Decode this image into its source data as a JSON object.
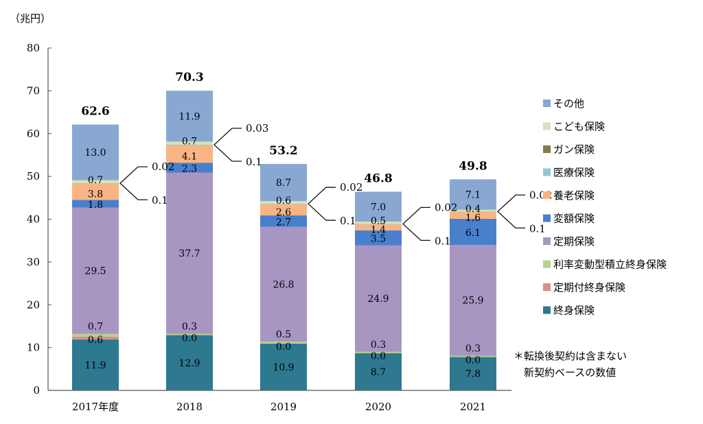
{
  "chart_data": {
    "type": "bar",
    "stacked": true,
    "unit_label": "（兆円）",
    "categories": [
      "2017年度",
      "2018",
      "2019",
      "2020",
      "2021"
    ],
    "ylim": [
      0,
      80
    ],
    "yticks": [
      0,
      10,
      20,
      30,
      40,
      50,
      60,
      70,
      80
    ],
    "grid": false,
    "legend_position": "right",
    "totals": [
      "62.6",
      "70.3",
      "53.2",
      "46.8",
      "49.8"
    ],
    "series": [
      {
        "name": "終身保険",
        "color": "#2e7890",
        "values": [
          11.9,
          12.9,
          10.9,
          8.7,
          7.8
        ],
        "labels": [
          "11.9",
          "12.9",
          "10.9",
          "8.7",
          "7.8"
        ]
      },
      {
        "name": "定期付終身保険",
        "color": "#d98c8c",
        "values": [
          0.6,
          0.0,
          0.0,
          0.0,
          0.0
        ],
        "labels": [
          "0.6",
          "0.0",
          "0.0",
          "0.0",
          "0.0"
        ]
      },
      {
        "name": "利率変動型積立終身保険",
        "color": "#b8cf8f",
        "values": [
          0.7,
          0.3,
          0.5,
          0.3,
          0.3
        ],
        "labels": [
          "0.7",
          "0.3",
          "0.5",
          "0.3",
          "0.3"
        ]
      },
      {
        "name": "定期保険",
        "color": "#a896c2",
        "values": [
          29.5,
          37.7,
          26.8,
          24.9,
          25.9
        ],
        "labels": [
          "29.5",
          "37.7",
          "26.8",
          "24.9",
          "25.9"
        ]
      },
      {
        "name": "変額保険",
        "color": "#4a7fcc",
        "values": [
          1.8,
          2.3,
          2.7,
          3.5,
          6.1
        ],
        "labels": [
          "1.8",
          "2.3",
          "2.7",
          "3.5",
          "6.1"
        ]
      },
      {
        "name": "養老保険",
        "color": "#f8b483",
        "values": [
          3.8,
          4.1,
          2.6,
          1.4,
          1.6
        ],
        "labels": [
          "3.8",
          "4.1",
          "2.6",
          "1.4",
          "1.6"
        ]
      },
      {
        "name": "医療保険",
        "color": "#8ec6d6",
        "values": [
          0.1,
          0.1,
          0.1,
          0.1,
          0.1
        ],
        "labels": [
          "0.1",
          "0.1",
          "0.1",
          "0.1",
          "0.1"
        ]
      },
      {
        "name": "ガン保険",
        "color": "#857a4a",
        "values": [
          0.02,
          0.03,
          0.02,
          0.02,
          0.02
        ],
        "labels": [
          "0.02",
          "0.03",
          "0.02",
          "0.02",
          "0.02"
        ]
      },
      {
        "name": "こども保険",
        "color": "#d4e4bf",
        "values": [
          0.7,
          0.7,
          0.6,
          0.5,
          0.4
        ],
        "labels": [
          "0.7",
          "0.7",
          "0.6",
          "0.5",
          "0.4"
        ]
      },
      {
        "name": "その他",
        "color": "#88a8d2",
        "values": [
          13.0,
          11.9,
          8.7,
          7.0,
          7.1
        ],
        "labels": [
          "13.0",
          "11.9",
          "8.7",
          "7.0",
          "7.1"
        ]
      }
    ],
    "legend_order": [
      "その他",
      "こども保険",
      "ガン保険",
      "医療保険",
      "養老保険",
      "変額保険",
      "定期保険",
      "利率変動型積立終身保険",
      "定期付終身保険",
      "終身保険"
    ],
    "callouts": [
      {
        "category": "2017年度",
        "upper": "0.02",
        "lower": "0.1"
      },
      {
        "category": "2018",
        "upper": "0.03",
        "lower": "0.1"
      },
      {
        "category": "2019",
        "upper": "0.02",
        "lower": "0.1"
      },
      {
        "category": "2020",
        "upper": "0.02",
        "lower": "0.1"
      },
      {
        "category": "2021",
        "upper": "0.02",
        "lower": "0.1"
      }
    ],
    "note": [
      "＊転換後契約は含まない",
      "　新契約ベースの数値"
    ]
  }
}
